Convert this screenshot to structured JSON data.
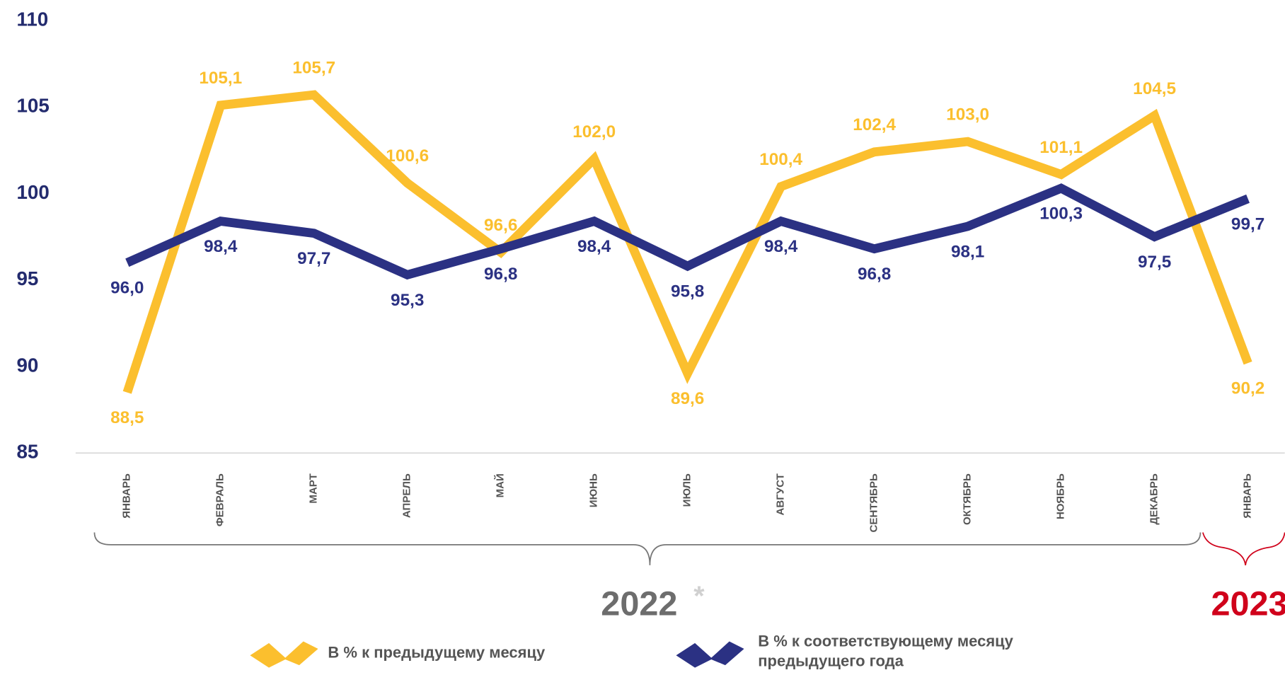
{
  "chart_data": {
    "type": "line",
    "categories": [
      "ЯНВАРЬ",
      "ФЕВРАЛЬ",
      "МАРТ",
      "АПРЕЛЬ",
      "МАЙ",
      "ИЮНЬ",
      "ИЮЛЬ",
      "АВГУСТ",
      "СЕНТЯБРЬ",
      "ОКТЯБРЬ",
      "НОЯБРЬ",
      "ДЕКАБРЬ",
      "ЯНВАРЬ"
    ],
    "series": [
      {
        "name": "В % к предыдущему месяцу",
        "color": "#fbbf2e",
        "values": [
          88.5,
          105.1,
          105.7,
          100.6,
          96.6,
          102.0,
          89.6,
          100.4,
          102.4,
          103.0,
          101.1,
          104.5,
          90.2
        ],
        "value_labels": [
          "88,5",
          "105,1",
          "105,7",
          "100,6",
          "96,6",
          "102,0",
          "89,6",
          "100,4",
          "102,4",
          "103,0",
          "101,1",
          "104,5",
          "90,2"
        ]
      },
      {
        "name": "В % к соответствующему месяцу предыдущего года",
        "color": "#2b3183",
        "values": [
          96.0,
          98.4,
          97.7,
          95.3,
          96.8,
          98.4,
          95.8,
          98.4,
          96.8,
          98.1,
          100.3,
          97.5,
          99.7
        ],
        "value_labels": [
          "96,0",
          "98,4",
          "97,7",
          "95,3",
          "96,8",
          "98,4",
          "95,8",
          "98,4",
          "96,8",
          "98,1",
          "100,3",
          "97,5",
          "99,7"
        ]
      }
    ],
    "ylim": [
      85,
      110
    ],
    "yticks": [
      85,
      90,
      95,
      100,
      105,
      110
    ],
    "year_labels": [
      "2022",
      "*",
      "2023"
    ]
  }
}
